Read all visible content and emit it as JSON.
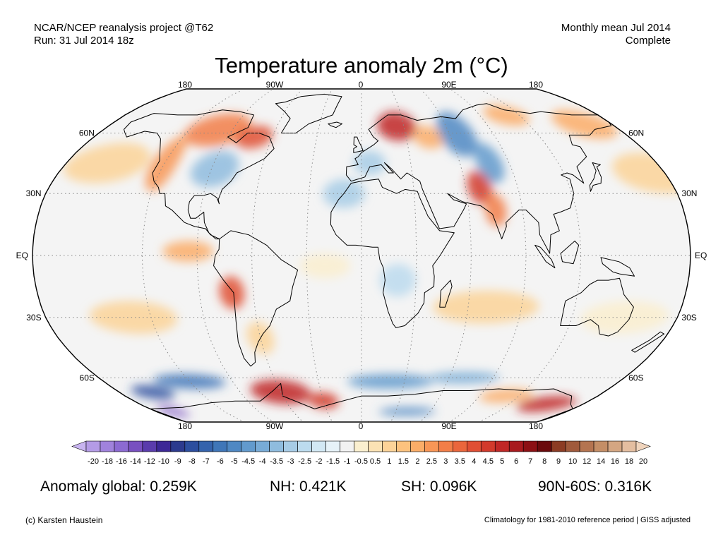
{
  "header": {
    "left_line1": "NCAR/NCEP reanalysis project @T62",
    "left_line2": "Run: 31 Jul 2014 18z",
    "right_line1": "Monthly mean Jul 2014",
    "right_line2": "Complete"
  },
  "title": "Temperature anomaly 2m (°C)",
  "map": {
    "projection": "robinson",
    "lon_labels_top": [
      "180",
      "90W",
      "0",
      "90E",
      "180"
    ],
    "lon_labels_bottom": [
      "180",
      "90W",
      "0",
      "90E",
      "180"
    ],
    "lat_labels_left": [
      "60N",
      "30N",
      "EQ",
      "30S",
      "60S"
    ],
    "lat_labels_right": [
      "60N",
      "30N",
      "EQ",
      "30S",
      "60S"
    ],
    "ocean_color": "#f4f4f4",
    "coastline_color": "#000000",
    "gridline_color": "#888888"
  },
  "colorbar": {
    "ticks": [
      "-20",
      "-18",
      "-16",
      "-14",
      "-12",
      "-10",
      "-9",
      "-8",
      "-7",
      "-6",
      "-5",
      "-4.5",
      "-4",
      "-3.5",
      "-3",
      "-2.5",
      "-2",
      "-1.5",
      "-1",
      "-0.5",
      "0.5",
      "1",
      "1.5",
      "2",
      "2.5",
      "3",
      "3.5",
      "4",
      "4.5",
      "5",
      "6",
      "7",
      "8",
      "9",
      "10",
      "12",
      "14",
      "16",
      "18",
      "20"
    ],
    "colors": [
      "#c8b4f0",
      "#b49be6",
      "#a082dc",
      "#8c6ad2",
      "#7850c0",
      "#5a3cac",
      "#3c2896",
      "#2c3a8e",
      "#2c4e9e",
      "#3563ac",
      "#3f76b8",
      "#4f88c3",
      "#629acd",
      "#78abd6",
      "#8fbcde",
      "#a7cce6",
      "#bcdbee",
      "#d2e8f4",
      "#e6f2f8",
      "#f2f2f2",
      "#faefcf",
      "#fbe2b4",
      "#fcd398",
      "#fcc27e",
      "#fbad68",
      "#f89656",
      "#f27e48",
      "#ea663c",
      "#e04f34",
      "#d23a2c",
      "#c02726",
      "#a81a1e",
      "#8c1014",
      "#6a0a0c",
      "#8c3c24",
      "#a05a3c",
      "#b47450",
      "#c48e66",
      "#d4a682",
      "#e4bea0",
      "#f0d4bc"
    ]
  },
  "anomaly_pattern": [
    {
      "lon": -100,
      "lat": 62,
      "rx": 22,
      "ry": 9,
      "color": "#f27e48"
    },
    {
      "lon": -72,
      "lat": 58,
      "rx": 12,
      "ry": 6,
      "color": "#e04f34"
    },
    {
      "lon": -120,
      "lat": 45,
      "rx": 8,
      "ry": 14,
      "color": "#f89656"
    },
    {
      "lon": -88,
      "lat": 42,
      "rx": 14,
      "ry": 9,
      "color": "#8fbcde"
    },
    {
      "lon": -155,
      "lat": 45,
      "rx": 25,
      "ry": 10,
      "color": "#fcd398"
    },
    {
      "lon": 25,
      "lat": 64,
      "rx": 14,
      "ry": 8,
      "color": "#c02726"
    },
    {
      "lon": 45,
      "lat": 58,
      "rx": 10,
      "ry": 6,
      "color": "#fbad68"
    },
    {
      "lon": 65,
      "lat": 60,
      "rx": 12,
      "ry": 12,
      "color": "#4f88c3"
    },
    {
      "lon": 78,
      "lat": 45,
      "rx": 8,
      "ry": 10,
      "color": "#629acd"
    },
    {
      "lon": 68,
      "lat": 33,
      "rx": 7,
      "ry": 8,
      "color": "#d23a2c"
    },
    {
      "lon": 75,
      "lat": 22,
      "rx": 6,
      "ry": 8,
      "color": "#f27e48"
    },
    {
      "lon": 110,
      "lat": 70,
      "rx": 16,
      "ry": 6,
      "color": "#fbad68"
    },
    {
      "lon": 160,
      "lat": 65,
      "rx": 20,
      "ry": 8,
      "color": "#fbad68"
    },
    {
      "lon": 175,
      "lat": 40,
      "rx": 25,
      "ry": 10,
      "color": "#fcd398"
    },
    {
      "lon": 5,
      "lat": 45,
      "rx": 10,
      "ry": 6,
      "color": "#a7cce6"
    },
    {
      "lon": -10,
      "lat": 30,
      "rx": 12,
      "ry": 7,
      "color": "#a7cce6"
    },
    {
      "lon": -95,
      "lat": 2,
      "rx": 14,
      "ry": 5,
      "color": "#fbad68"
    },
    {
      "lon": -72,
      "lat": -18,
      "rx": 7,
      "ry": 8,
      "color": "#e04f34"
    },
    {
      "lon": -60,
      "lat": -40,
      "rx": 8,
      "ry": 8,
      "color": "#fcd398"
    },
    {
      "lon": 20,
      "lat": -12,
      "rx": 10,
      "ry": 8,
      "color": "#bcdbee"
    },
    {
      "lon": -20,
      "lat": -5,
      "rx": 14,
      "ry": 6,
      "color": "#faefcf"
    },
    {
      "lon": 70,
      "lat": -25,
      "rx": 30,
      "ry": 8,
      "color": "#fcd398"
    },
    {
      "lon": -130,
      "lat": -30,
      "rx": 25,
      "ry": 8,
      "color": "#fcd398"
    },
    {
      "lon": 150,
      "lat": -30,
      "rx": 25,
      "ry": 8,
      "color": "#faefcf"
    },
    {
      "lon": -120,
      "lat": -62,
      "rx": 25,
      "ry": 4,
      "color": "#3f76b8"
    },
    {
      "lon": -155,
      "lat": -68,
      "rx": 15,
      "ry": 4,
      "color": "#2c4e9e"
    },
    {
      "lon": -60,
      "lat": -68,
      "rx": 22,
      "ry": 7,
      "color": "#c02726"
    },
    {
      "lon": -30,
      "lat": -73,
      "rx": 12,
      "ry": 5,
      "color": "#d23a2c"
    },
    {
      "lon": 20,
      "lat": -62,
      "rx": 30,
      "ry": 4,
      "color": "#629acd"
    },
    {
      "lon": 70,
      "lat": -60,
      "rx": 25,
      "ry": 3,
      "color": "#78abd6"
    },
    {
      "lon": 150,
      "lat": -75,
      "rx": 22,
      "ry": 5,
      "color": "#c02726"
    },
    {
      "lon": 110,
      "lat": -70,
      "rx": 20,
      "ry": 4,
      "color": "#fbad68"
    },
    {
      "lon": -165,
      "lat": -80,
      "rx": 10,
      "ry": 4,
      "color": "#7850c0"
    },
    {
      "lon": 40,
      "lat": -80,
      "rx": 25,
      "ry": 3,
      "color": "#4f88c3"
    }
  ],
  "stats": {
    "global": "Anomaly global: 0.259K",
    "nh": "NH: 0.421K",
    "sh": "SH: 0.096K",
    "arctic": "90N-60S: 0.316K"
  },
  "credit": "(c) Karsten Haustein",
  "climatology_note": "Climatology for 1981-2010 reference period | GISS adjusted"
}
